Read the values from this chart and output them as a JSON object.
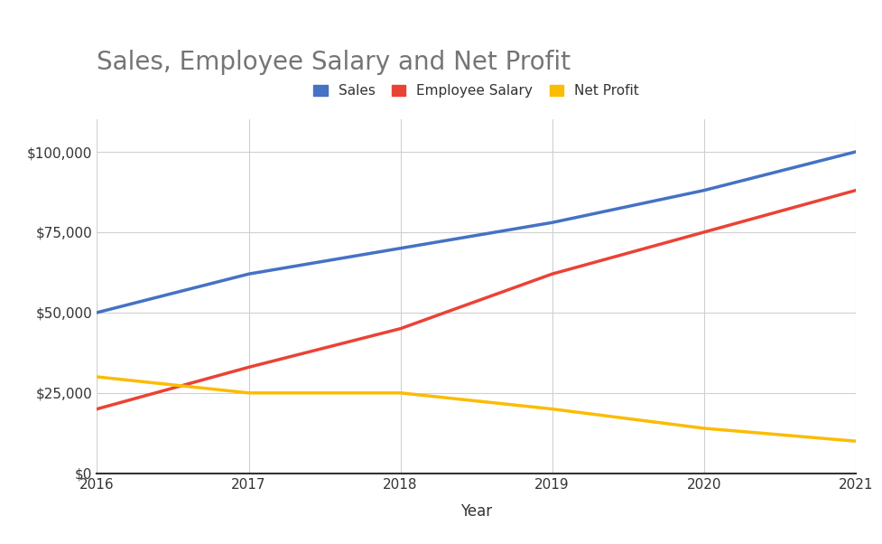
{
  "title": "Sales, Employee Salary and Net Profit",
  "xlabel": "Year",
  "ylabel": "",
  "years": [
    2016,
    2017,
    2018,
    2019,
    2020,
    2021
  ],
  "sales": [
    50000,
    62000,
    70000,
    78000,
    88000,
    100000
  ],
  "employee_salary": [
    20000,
    33000,
    45000,
    62000,
    75000,
    88000
  ],
  "net_profit": [
    30000,
    25000,
    25000,
    20000,
    14000,
    10000
  ],
  "sales_color": "#4472C4",
  "salary_color": "#EA4335",
  "profit_color": "#FBBC04",
  "ylim": [
    0,
    110000
  ],
  "yticks": [
    0,
    25000,
    50000,
    75000,
    100000
  ],
  "background_color": "#ffffff",
  "plot_bg_color": "#ffffff",
  "title_color": "#757575",
  "title_fontsize": 20,
  "label_fontsize": 12,
  "tick_fontsize": 11,
  "legend_fontsize": 11,
  "line_width": 2.5,
  "grid_color": "#d0d0d0"
}
